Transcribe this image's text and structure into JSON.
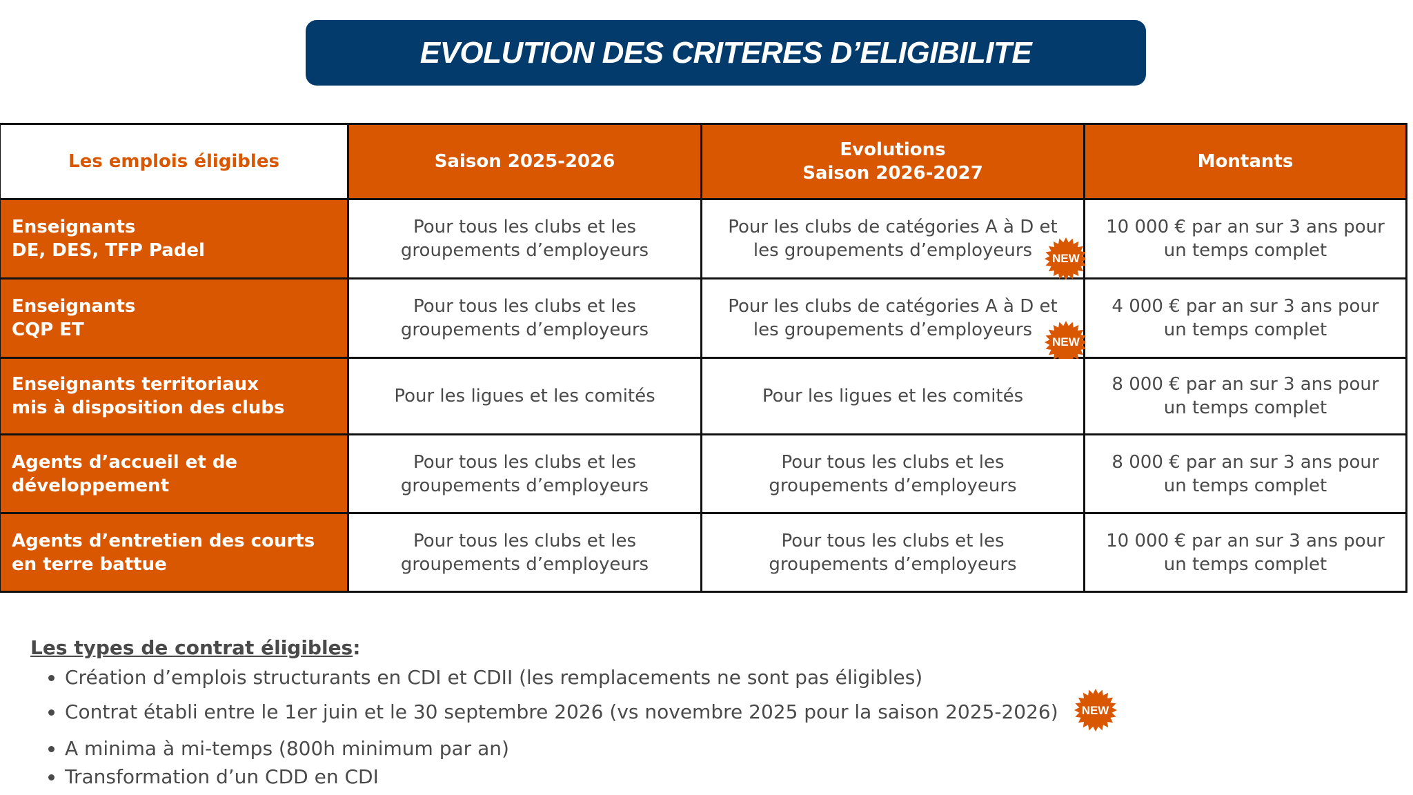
{
  "title": "EVOLUTION DES CRITERES D’ELIGIBILITE",
  "table": {
    "headers": [
      "Les emplois éligibles",
      "Saison 2025-2026",
      "Evolutions",
      "Saison 2026-2027",
      "Montants"
    ],
    "rows": [
      {
        "job_line1": "Enseignants",
        "job_line2": "DE, DES, TFP Padel",
        "current_1": "Pour tous les clubs et les",
        "current_2": "groupements d’employeurs",
        "next_1": "Pour les clubs de catégories A à D et",
        "next_2": "les groupements d’employeurs",
        "next_new": true,
        "amount_1": "10 000 € par an sur 3 ans pour",
        "amount_2": "un temps complet"
      },
      {
        "job_line1": "Enseignants",
        "job_line2": "CQP ET",
        "current_1": "Pour tous les clubs et les",
        "current_2": "groupements d’employeurs",
        "next_1": "Pour les clubs de catégories A à D et",
        "next_2": "les groupements d’employeurs",
        "next_new": true,
        "amount_1": "4 000 € par an sur 3 ans pour",
        "amount_2": "un temps complet"
      },
      {
        "job_line1": "Enseignants territoriaux",
        "job_line2": "mis à disposition des clubs",
        "current_1": "Pour les ligues et les comités",
        "current_2": "",
        "next_1": "Pour les ligues et les comités",
        "next_2": "",
        "next_new": false,
        "amount_1": "8 000 € par an sur 3 ans pour",
        "amount_2": "un temps complet"
      },
      {
        "job_line1": "Agents d’accueil et de",
        "job_line2": "développement",
        "current_1": "Pour tous les clubs et les",
        "current_2": "groupements d’employeurs",
        "next_1": "Pour tous les clubs et les",
        "next_2": "groupements d’employeurs",
        "next_new": false,
        "amount_1": "8 000 € par an sur 3 ans pour",
        "amount_2": "un temps complet"
      },
      {
        "job_line1": "Agents d’entretien des courts",
        "job_line2": "en terre battue",
        "current_1": "Pour tous les clubs et les",
        "current_2": "groupements d’employeurs",
        "next_1": "Pour tous les clubs et les",
        "next_2": "groupements d’employeurs",
        "next_new": false,
        "amount_1": "10 000 € par an sur 3 ans pour",
        "amount_2": "un temps complet"
      }
    ]
  },
  "badge_label": "NEW",
  "contracts": {
    "title": "Les types de contrat éligibles",
    "colon": " :",
    "items": [
      "Création d’emplois structurants en CDI et CDII (les remplacements ne sont pas éligibles)",
      "Contrat établi entre le 1er juin et le 30 septembre 2026 (vs novembre 2025 pour la saison 2025-2026)",
      "A minima à mi-temps (800h minimum par an)",
      "Transformation d’un CDD en CDI"
    ]
  },
  "colors": {
    "navy": "#033c6c",
    "orange": "#d95700",
    "text": "#4a4a4a"
  }
}
